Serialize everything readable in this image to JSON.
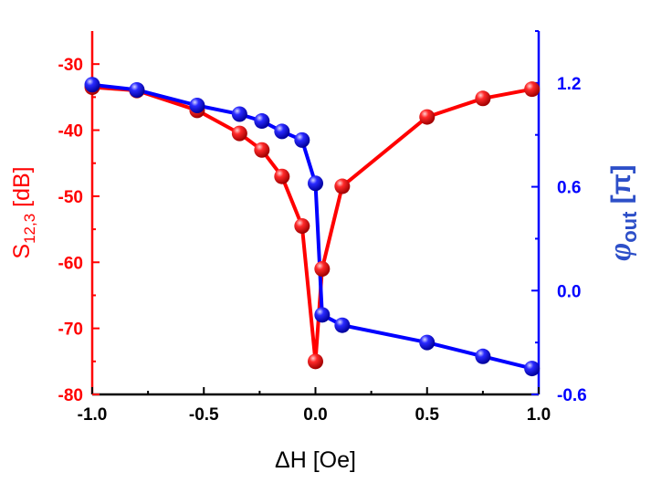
{
  "chart_data": {
    "type": "scatter",
    "xlabel": "ΔH [Oe]",
    "xlim": [
      -1.0,
      1.0
    ],
    "x_ticks": [
      "-1.0",
      "-0.5",
      "0.0",
      "0.5",
      "1.0"
    ],
    "y_left": {
      "label_main": "S",
      "label_sub": "12,3",
      "label_unit": " [dB]",
      "ylim": [
        -80,
        -25
      ],
      "ticks": [
        "-30",
        "-40",
        "-50",
        "-60",
        "-70",
        "-80"
      ],
      "color": "#ff0000"
    },
    "y_right": {
      "label_main": "φ",
      "label_sub": "out",
      "label_unit": " [π]",
      "ylim": [
        -0.6,
        1.5
      ],
      "ticks": [
        "1.2",
        "0.6",
        "0.0",
        "-0.6"
      ],
      "color": "#0000ff"
    },
    "series": [
      {
        "axis": "left",
        "color": "#ff0000",
        "x": [
          -1.0,
          -0.8,
          -0.53,
          -0.34,
          -0.24,
          -0.15,
          -0.06,
          0.0,
          0.03,
          0.12,
          0.5,
          0.75,
          0.97
        ],
        "y": [
          -33.5,
          -34.0,
          -37.0,
          -40.5,
          -43.0,
          -47.0,
          -54.5,
          -75.0,
          -61.0,
          -48.5,
          -38.0,
          -35.2,
          -33.8
        ]
      },
      {
        "axis": "right",
        "color": "#0000ff",
        "x": [
          -1.0,
          -0.8,
          -0.53,
          -0.34,
          -0.24,
          -0.15,
          -0.06,
          0.0,
          0.03,
          0.12,
          0.5,
          0.75,
          0.97
        ],
        "y": [
          1.19,
          1.16,
          1.07,
          1.02,
          0.98,
          0.92,
          0.87,
          0.62,
          -0.14,
          -0.2,
          -0.3,
          -0.38,
          -0.45
        ]
      }
    ]
  }
}
